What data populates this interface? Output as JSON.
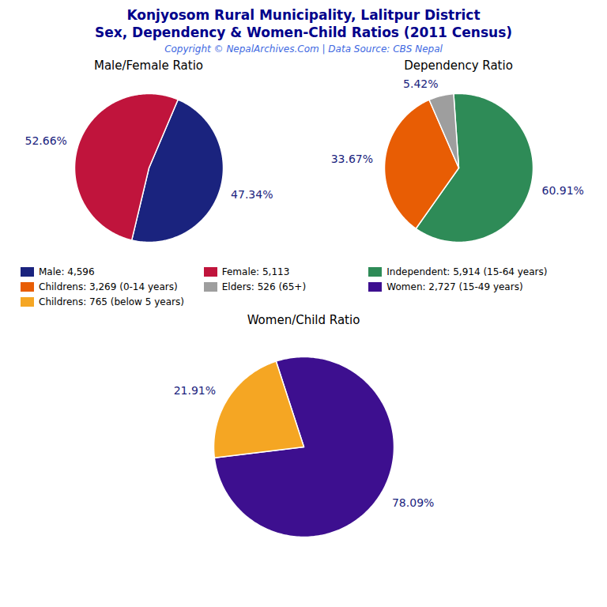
{
  "title": "Konjyosom Rural Municipality, Lalitpur District",
  "subtitle": "Sex, Dependency & Women-Child Ratios (2011 Census)",
  "caption": "Copyright © NepalArchives.Com | Data Source: CBS Nepal",
  "chart_data": [
    {
      "type": "pie",
      "title": "Male/Female Ratio",
      "categories": [
        "Male: 4,596",
        "Female: 5,113"
      ],
      "values": [
        47.34,
        52.66
      ],
      "value_labels": [
        "47.34%",
        "52.66%"
      ],
      "colors": [
        "#1a237e",
        "#c0143c"
      ],
      "data_labels": true,
      "legend": "bottom"
    },
    {
      "type": "pie",
      "title": "Dependency Ratio",
      "categories": [
        "Independent: 5,914 (15-64 years)",
        "Childrens: 3,269 (0-14 years)",
        "Elders: 526 (65+)"
      ],
      "values": [
        60.91,
        33.67,
        5.42
      ],
      "value_labels": [
        "60.91%",
        "33.67%",
        "5.42%"
      ],
      "colors": [
        "#2e8b57",
        "#e85d04",
        "#9e9e9e"
      ],
      "data_labels": true,
      "legend": "bottom"
    },
    {
      "type": "pie",
      "title": "Women/Child Ratio",
      "categories": [
        "Women: 2,727 (15-49 years)",
        "Childrens: 765 (below 5 years)"
      ],
      "values": [
        78.09,
        21.91
      ],
      "value_labels": [
        "78.09%",
        "21.91%"
      ],
      "colors": [
        "#3d0f8f",
        "#f5a623"
      ],
      "data_labels": true,
      "legend": "top"
    }
  ]
}
